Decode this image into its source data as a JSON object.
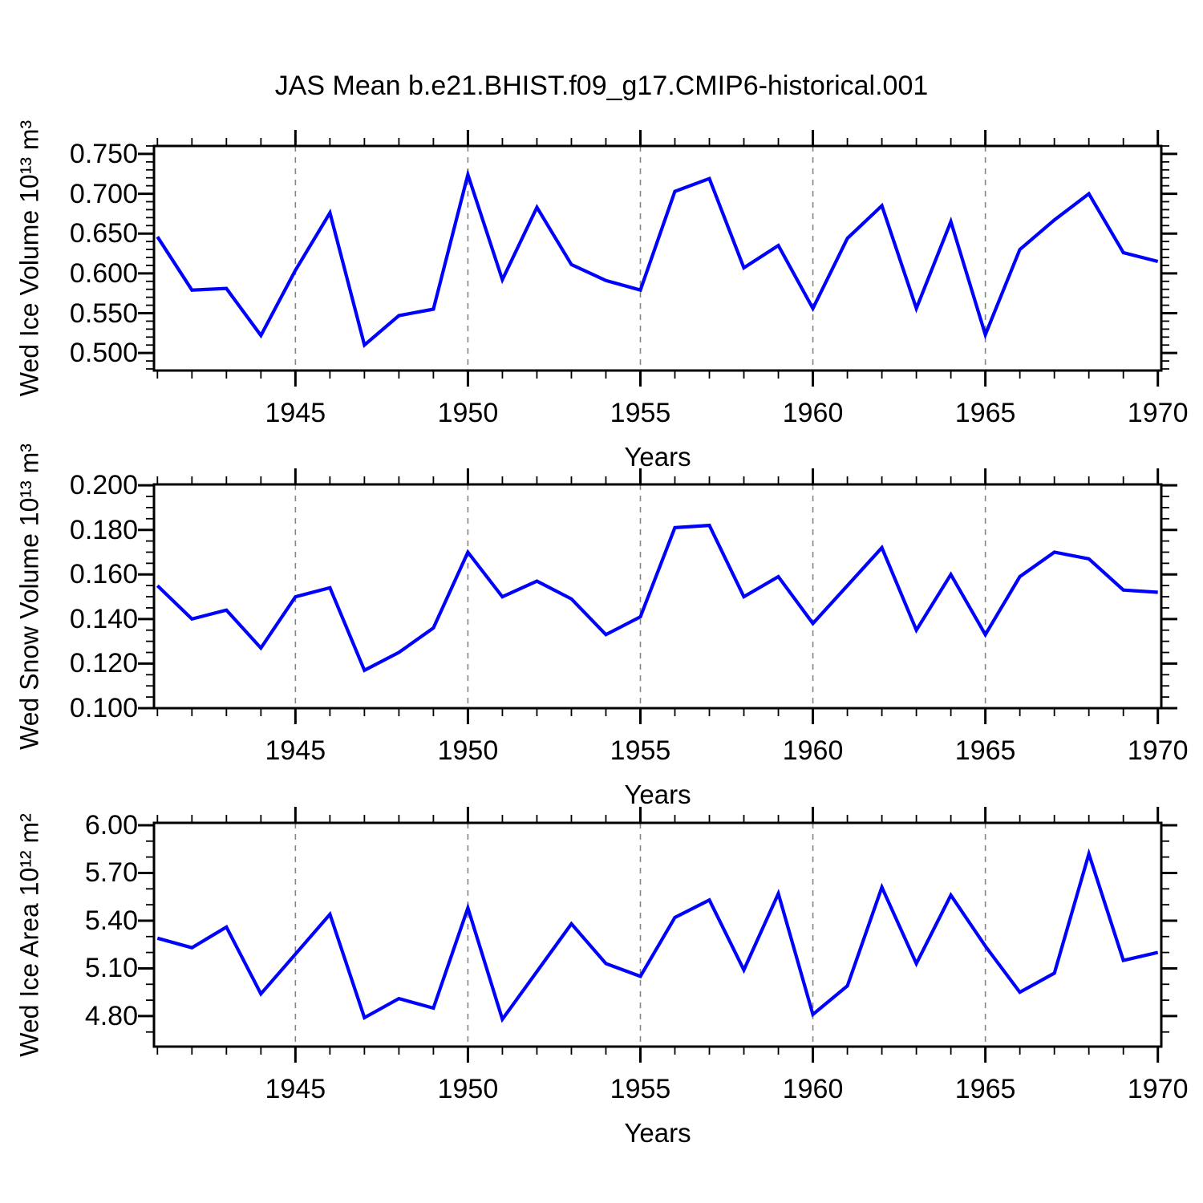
{
  "title": "JAS Mean b.e21.BHIST.f09_g17.CMIP6-historical.001",
  "colors": {
    "line": "#0000ff",
    "grid": "#858585",
    "axis": "#000000",
    "background": "#ffffff"
  },
  "chart_data": [
    {
      "type": "line",
      "ylabel": "Wed Ice Volume 10¹³ m³",
      "xlabel": "Years",
      "x": [
        1941,
        1942,
        1943,
        1944,
        1945,
        1946,
        1947,
        1948,
        1949,
        1950,
        1951,
        1952,
        1953,
        1954,
        1955,
        1956,
        1957,
        1958,
        1959,
        1960,
        1961,
        1962,
        1963,
        1964,
        1965,
        1966,
        1967,
        1968,
        1969,
        1970
      ],
      "values": [
        0.646,
        0.579,
        0.581,
        0.522,
        0.604,
        0.676,
        0.51,
        0.547,
        0.555,
        0.724,
        0.592,
        0.683,
        0.611,
        0.591,
        0.579,
        0.703,
        0.719,
        0.607,
        0.635,
        0.556,
        0.644,
        0.685,
        0.556,
        0.665,
        0.523,
        0.63,
        0.667,
        0.7,
        0.626,
        0.615
      ],
      "xlim": [
        1940.9,
        1970.1
      ],
      "xticks": [
        1945,
        1950,
        1955,
        1960,
        1965,
        1970
      ],
      "xtick_labels": [
        "1945",
        "1950",
        "1955",
        "1960",
        "1965",
        "1970"
      ],
      "xminor_step": 1,
      "ylim": [
        0.478,
        0.76
      ],
      "yticks": [
        0.5,
        0.55,
        0.6,
        0.65,
        0.7,
        0.75
      ],
      "ytick_labels": [
        "0.500",
        "0.550",
        "0.600",
        "0.650",
        "0.700",
        "0.750"
      ],
      "yminor_step": 0.01,
      "grid": "vertical-dashed-at-major-xticks",
      "legend": "none"
    },
    {
      "type": "line",
      "ylabel": "Wed Snow Volume 10¹³ m³",
      "xlabel": "Years",
      "x": [
        1941,
        1942,
        1943,
        1944,
        1945,
        1946,
        1947,
        1948,
        1949,
        1950,
        1951,
        1952,
        1953,
        1954,
        1955,
        1956,
        1957,
        1958,
        1959,
        1960,
        1961,
        1962,
        1963,
        1964,
        1965,
        1966,
        1967,
        1968,
        1969,
        1970
      ],
      "values": [
        0.155,
        0.14,
        0.144,
        0.127,
        0.15,
        0.154,
        0.117,
        0.125,
        0.136,
        0.17,
        0.15,
        0.157,
        0.149,
        0.133,
        0.141,
        0.181,
        0.182,
        0.15,
        0.159,
        0.138,
        0.155,
        0.172,
        0.135,
        0.16,
        0.133,
        0.159,
        0.17,
        0.167,
        0.153,
        0.152
      ],
      "xlim": [
        1940.9,
        1970.1
      ],
      "xticks": [
        1945,
        1950,
        1955,
        1960,
        1965,
        1970
      ],
      "xtick_labels": [
        "1945",
        "1950",
        "1955",
        "1960",
        "1965",
        "1970"
      ],
      "xminor_step": 1,
      "ylim": [
        0.1,
        0.2004
      ],
      "yticks": [
        0.1,
        0.12,
        0.14,
        0.16,
        0.18,
        0.2
      ],
      "ytick_labels": [
        "0.100",
        "0.120",
        "0.140",
        "0.160",
        "0.180",
        "0.200"
      ],
      "yminor_step": 0.005,
      "grid": "vertical-dashed-at-major-xticks",
      "legend": "none"
    },
    {
      "type": "line",
      "ylabel": "Wed Ice Area 10¹² m²",
      "xlabel": "Years",
      "x": [
        1941,
        1942,
        1943,
        1944,
        1945,
        1946,
        1947,
        1948,
        1949,
        1950,
        1951,
        1952,
        1953,
        1954,
        1955,
        1956,
        1957,
        1958,
        1959,
        1960,
        1961,
        1962,
        1963,
        1964,
        1965,
        1966,
        1967,
        1968,
        1969,
        1970
      ],
      "values": [
        5.29,
        5.23,
        5.36,
        4.94,
        5.19,
        5.44,
        4.79,
        4.91,
        4.85,
        5.48,
        4.78,
        5.08,
        5.38,
        5.13,
        5.05,
        5.42,
        5.53,
        5.09,
        5.57,
        4.81,
        4.99,
        5.61,
        5.13,
        5.56,
        5.24,
        4.95,
        5.07,
        5.82,
        5.15,
        5.2
      ],
      "xlim": [
        1940.9,
        1970.1
      ],
      "xticks": [
        1945,
        1950,
        1955,
        1960,
        1965,
        1970
      ],
      "xtick_labels": [
        "1945",
        "1950",
        "1955",
        "1960",
        "1965",
        "1970"
      ],
      "xminor_step": 1,
      "ylim": [
        4.608,
        6.015
      ],
      "yticks": [
        4.8,
        5.1,
        5.4,
        5.7,
        6.0
      ],
      "ytick_labels": [
        "4.80",
        "5.10",
        "5.40",
        "5.70",
        "6.00"
      ],
      "yminor_step": 0.1,
      "grid": "vertical-dashed-at-major-xticks",
      "legend": "none"
    }
  ]
}
